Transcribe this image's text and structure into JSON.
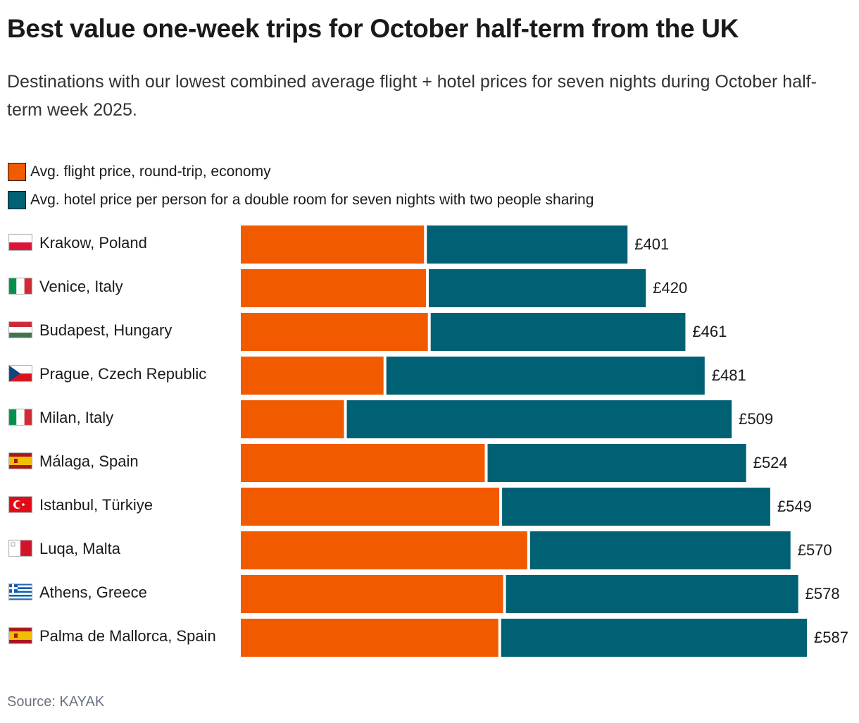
{
  "title": "Best value one-week trips for October half-term from the UK",
  "subtitle": "Destinations with our lowest combined average flight + hotel prices for seven nights during October half-term week 2025.",
  "source": "Source: KAYAK",
  "colors": {
    "flight": "#f25a00",
    "hotel": "#016174"
  },
  "legend": [
    {
      "label": "Avg. flight price, round-trip, economy",
      "color": "#f25a00"
    },
    {
      "label": "Avg. hotel price per person for a double room for seven nights with two people sharing",
      "color": "#016174"
    }
  ],
  "chart_data": {
    "type": "bar",
    "orientation": "horizontal",
    "stacked": true,
    "title": "Best value one-week trips for October half-term from the UK",
    "xlabel": "",
    "ylabel": "",
    "xlim": [
      0,
      587
    ],
    "grid": false,
    "legend_position": "top-left",
    "categories": [
      "Krakow, Poland",
      "Venice, Italy",
      "Budapest, Hungary",
      "Prague, Czech Republic",
      "Milan, Italy",
      "Málaga, Spain",
      "Istanbul, Türkiye",
      "Luqa, Malta",
      "Athens, Greece",
      "Palma de Mallorca, Spain"
    ],
    "flags": [
      "poland",
      "italy",
      "hungary",
      "czech",
      "italy",
      "spain",
      "turkey",
      "malta",
      "greece",
      "spain"
    ],
    "series": [
      {
        "name": "Avg. flight price, round-trip, economy",
        "values": [
          190,
          192,
          194,
          148,
          107,
          253,
          268,
          297,
          272,
          267
        ]
      },
      {
        "name": "Avg. hotel price per person for a double room for seven nights with two people sharing",
        "values": [
          211,
          228,
          267,
          333,
          402,
          271,
          281,
          273,
          306,
          320
        ]
      }
    ],
    "totals": [
      401,
      420,
      461,
      481,
      509,
      524,
      549,
      570,
      578,
      587
    ],
    "total_labels": [
      "£401",
      "£420",
      "£461",
      "£481",
      "£509",
      "£524",
      "£549",
      "£570",
      "£578",
      "£587"
    ]
  }
}
